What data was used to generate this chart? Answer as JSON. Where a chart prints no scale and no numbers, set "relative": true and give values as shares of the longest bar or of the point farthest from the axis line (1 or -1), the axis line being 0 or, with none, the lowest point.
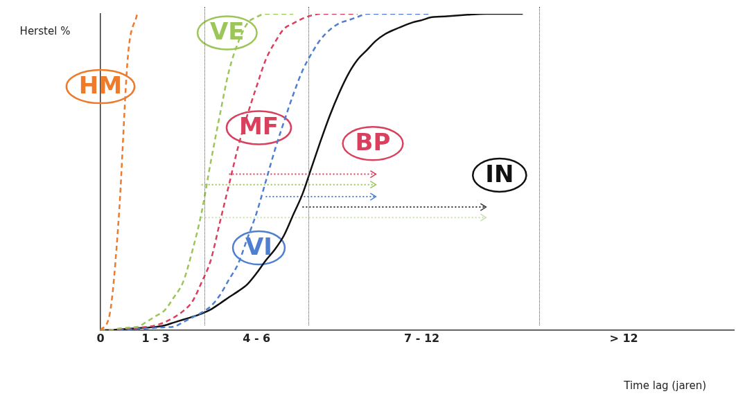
{
  "chart_data": {
    "type": "line",
    "relative": true,
    "ylabel": "Herstel %",
    "xlabel": "Time lag (jaren)",
    "annotations": [
      "BP"
    ],
    "grid": false,
    "legend": false,
    "categories": [
      "0",
      null,
      null,
      null,
      null,
      null,
      "1 - 3",
      null,
      null,
      null,
      null,
      null,
      null,
      null,
      null,
      null,
      null,
      "4 - 6",
      null,
      null,
      null,
      null,
      null,
      null,
      null,
      null,
      null,
      null,
      null,
      null,
      null,
      null,
      null,
      null,
      null,
      "7 - 12",
      null,
      null,
      null,
      null,
      null,
      null,
      null,
      null,
      null,
      null,
      null,
      null,
      null,
      null,
      null,
      null,
      null,
      null,
      null,
      null,
      null,
      "> 12",
      null,
      null,
      null,
      null,
      null,
      null,
      null,
      null,
      null,
      null,
      null,
      null
    ],
    "series": [
      {
        "name": "HM",
        "color": "#ee7a2a",
        "line_style": "dashed",
        "values": [
          0,
          0.05,
          0.36,
          0.87,
          1,
          null,
          null,
          null,
          null,
          null,
          null,
          null,
          null,
          null,
          null,
          null,
          null,
          null,
          null,
          null,
          null,
          null,
          null,
          null,
          null,
          null,
          null,
          null,
          null,
          null,
          null,
          null,
          null,
          null,
          null,
          null,
          null,
          null,
          null,
          null,
          null,
          null,
          null,
          null,
          null,
          null,
          null,
          null,
          null,
          null,
          null,
          null,
          null,
          null,
          null,
          null,
          null,
          null,
          null,
          null,
          null,
          null,
          null,
          null,
          null,
          null,
          null,
          null,
          null,
          null
        ]
      },
      {
        "name": "VE",
        "color": "#9cc55a",
        "line_style": "dashed",
        "values": [
          0,
          0,
          0.005,
          0.008,
          0.01,
          0.026,
          0.044,
          0.063,
          0.104,
          0.152,
          0.25,
          0.37,
          0.53,
          0.68,
          0.82,
          0.91,
          0.97,
          0.99,
          1,
          1,
          1,
          1,
          null,
          null,
          null,
          null,
          null,
          null,
          null,
          null,
          null,
          null,
          null,
          null,
          null,
          null,
          null,
          null,
          null,
          null,
          null,
          null,
          null,
          null,
          null,
          null,
          null,
          null,
          null,
          null,
          null,
          null,
          null,
          null,
          null,
          null,
          null,
          null,
          null,
          null,
          null,
          null,
          null,
          null,
          null,
          null,
          null,
          null,
          null,
          null
        ]
      },
      {
        "name": "MF",
        "color": "#d8405e",
        "line_style": "dashed",
        "values": [
          0,
          0,
          0.003,
          0.005,
          0.008,
          0.01,
          0.015,
          0.025,
          0.04,
          0.06,
          0.09,
          0.15,
          0.22,
          0.34,
          0.46,
          0.58,
          0.68,
          0.77,
          0.855,
          0.91,
          0.953,
          0.97,
          0.985,
          0.995,
          1,
          1,
          1,
          1,
          1,
          null,
          null,
          null,
          null,
          null,
          null,
          null,
          null,
          null,
          null,
          null,
          null,
          null,
          null,
          null,
          null,
          null,
          null,
          null,
          null,
          null,
          null,
          null,
          null,
          null,
          null,
          null,
          null,
          null,
          null,
          null,
          null,
          null,
          null,
          null,
          null,
          null,
          null,
          null,
          null,
          null
        ]
      },
      {
        "name": "VI",
        "color": "#4f7fd0",
        "line_style": "dashed",
        "values": [
          null,
          null,
          0,
          0.002,
          0.004,
          0.005,
          0.007,
          0.009,
          0.011,
          0.025,
          0.04,
          0.055,
          0.075,
          0.11,
          0.16,
          0.21,
          0.29,
          0.37,
          0.47,
          0.57,
          0.66,
          0.745,
          0.82,
          0.875,
          0.92,
          0.95,
          0.97,
          0.98,
          0.99,
          1,
          1,
          1,
          1,
          1,
          1,
          1,
          1,
          null,
          null,
          null,
          null,
          null,
          null,
          null,
          null,
          null,
          null,
          null,
          null,
          null,
          null,
          null,
          null,
          null,
          null,
          null,
          null,
          null,
          null,
          null,
          null,
          null,
          null,
          null,
          null,
          null,
          null,
          null,
          null,
          null
        ]
      },
      {
        "name": "IN",
        "color": "#111111",
        "line_style": "solid",
        "values": [
          0,
          0,
          0.002,
          0.004,
          0.006,
          0.008,
          0.01,
          0.015,
          0.024,
          0.033,
          0.042,
          0.052,
          0.065,
          0.084,
          0.104,
          0.123,
          0.145,
          0.18,
          0.22,
          0.255,
          0.3,
          0.365,
          0.43,
          0.515,
          0.6,
          0.68,
          0.75,
          0.81,
          0.855,
          0.885,
          0.915,
          0.936,
          0.95,
          0.962,
          0.973,
          0.98,
          0.989,
          0.991,
          0.993,
          0.995,
          0.997,
          0.999,
          1,
          1,
          1,
          1,
          1,
          null,
          null,
          null,
          null,
          null,
          null,
          null,
          null,
          null,
          null,
          null,
          null,
          null,
          null,
          null,
          null,
          null,
          null,
          null,
          null,
          null,
          null,
          null
        ]
      },
      {
        "color": "#d8405e",
        "line_style": "dotted",
        "values": [
          null,
          null,
          null,
          null,
          null,
          null,
          null,
          null,
          null,
          null,
          null,
          null,
          null,
          null,
          0.493,
          0.493,
          0.493,
          0.493,
          0.493,
          0.493,
          0.493,
          0.493,
          0.493,
          0.493,
          0.493,
          0.493,
          0.493,
          0.493,
          0.493,
          0.493,
          0.493,
          null,
          null,
          null,
          null,
          null,
          null,
          null,
          null,
          null,
          null,
          null,
          null,
          null,
          null,
          null,
          null,
          null,
          null,
          null,
          null,
          null,
          null,
          null,
          null,
          null,
          null,
          null,
          null,
          null,
          null,
          null,
          null,
          null,
          null,
          null,
          null,
          null,
          null,
          null
        ]
      },
      {
        "color": "#9cc55a",
        "line_style": "dotted",
        "values": [
          null,
          null,
          null,
          null,
          null,
          null,
          null,
          null,
          null,
          null,
          null,
          0.46,
          0.46,
          0.46,
          0.46,
          0.46,
          0.46,
          0.46,
          0.46,
          0.46,
          0.46,
          0.46,
          0.46,
          0.46,
          0.46,
          0.46,
          0.46,
          0.46,
          0.46,
          0.46,
          0.46,
          null,
          null,
          null,
          null,
          null,
          null,
          null,
          null,
          null,
          null,
          null,
          null,
          null,
          null,
          null,
          null,
          null,
          null,
          null,
          null,
          null,
          null,
          null,
          null,
          null,
          null,
          null,
          null,
          null,
          null,
          null,
          null,
          null,
          null,
          null,
          null,
          null,
          null,
          null
        ]
      },
      {
        "color": "#4f7fd0",
        "line_style": "dotted",
        "values": [
          null,
          null,
          null,
          null,
          null,
          null,
          null,
          null,
          null,
          null,
          null,
          null,
          null,
          null,
          null,
          null,
          null,
          null,
          0.422,
          0.422,
          0.422,
          0.422,
          0.422,
          0.422,
          0.422,
          0.422,
          0.422,
          0.422,
          0.422,
          0.422,
          0.422,
          null,
          null,
          null,
          null,
          null,
          null,
          null,
          null,
          null,
          null,
          null,
          null,
          null,
          null,
          null,
          null,
          null,
          null,
          null,
          null,
          null,
          null,
          null,
          null,
          null,
          null,
          null,
          null,
          null,
          null,
          null,
          null,
          null,
          null,
          null,
          null,
          null,
          null,
          null
        ]
      },
      {
        "color": "#333333",
        "line_style": "dotted",
        "values": [
          null,
          null,
          null,
          null,
          null,
          null,
          null,
          null,
          null,
          null,
          null,
          null,
          null,
          null,
          null,
          null,
          null,
          null,
          null,
          null,
          null,
          null,
          0.389,
          0.389,
          0.389,
          0.389,
          0.389,
          0.389,
          0.389,
          0.389,
          0.389,
          0.389,
          0.389,
          0.389,
          0.389,
          0.389,
          0.389,
          0.389,
          0.389,
          0.389,
          0.389,
          0.389,
          0.389,
          null,
          null,
          null,
          null,
          null,
          null,
          null,
          null,
          null,
          null,
          null,
          null,
          null,
          null,
          null,
          null,
          null,
          null,
          null,
          null,
          null,
          null,
          null,
          null,
          null,
          null,
          null
        ]
      },
      {
        "color": "#c7e0b0",
        "line_style": "dotted",
        "values": [
          null,
          null,
          null,
          null,
          null,
          null,
          null,
          null,
          null,
          null,
          null,
          0.356,
          0.356,
          0.356,
          0.356,
          0.356,
          0.356,
          0.356,
          0.356,
          0.356,
          0.356,
          0.356,
          0.356,
          0.356,
          0.356,
          0.356,
          0.356,
          0.356,
          0.356,
          0.356,
          0.356,
          0.356,
          0.356,
          0.356,
          0.356,
          0.356,
          0.356,
          0.356,
          0.356,
          0.356,
          0.356,
          0.356,
          0.356,
          null,
          null,
          null,
          null,
          null,
          null,
          null,
          null,
          null,
          null,
          null,
          null,
          null,
          null,
          null,
          null,
          null,
          null,
          null,
          null,
          null,
          null,
          null,
          null,
          null,
          null,
          null
        ]
      }
    ]
  }
}
